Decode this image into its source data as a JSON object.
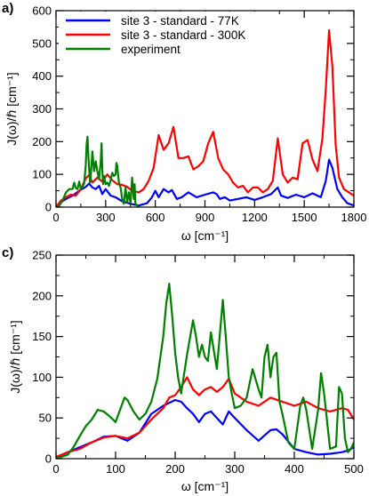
{
  "chart_data": [
    {
      "type": "line",
      "panel_label": "a)",
      "xlabel": "ω  [cm⁻¹]",
      "ylabel": "J(ω)/ℏ  [cm⁻¹]",
      "xlim": [
        0,
        1800
      ],
      "ylim": [
        0,
        600
      ],
      "xticks": [
        0,
        300,
        600,
        900,
        1200,
        1500,
        1800
      ],
      "yticks": [
        0,
        100,
        200,
        300,
        400,
        500,
        600
      ],
      "legend_position": "top-left",
      "series": [
        {
          "name": "site 3 - standard - 77K",
          "color": "#0000ff",
          "x": [
            0,
            30,
            60,
            100,
            140,
            180,
            200,
            220,
            240,
            260,
            280,
            300,
            330,
            360,
            400,
            450,
            500,
            550,
            580,
            600,
            620,
            650,
            680,
            700,
            730,
            760,
            800,
            850,
            900,
            950,
            970,
            990,
            1020,
            1050,
            1100,
            1150,
            1200,
            1250,
            1300,
            1340,
            1360,
            1400,
            1450,
            1500,
            1550,
            1600,
            1630,
            1650,
            1670,
            1700,
            1730,
            1760,
            1800
          ],
          "y": [
            0,
            15,
            25,
            35,
            50,
            62,
            72,
            60,
            55,
            65,
            40,
            55,
            35,
            30,
            18,
            10,
            5,
            12,
            30,
            50,
            30,
            55,
            45,
            52,
            25,
            30,
            45,
            30,
            38,
            45,
            40,
            25,
            30,
            20,
            25,
            30,
            22,
            30,
            40,
            60,
            35,
            28,
            38,
            30,
            42,
            30,
            80,
            145,
            120,
            55,
            30,
            12,
            5
          ]
        },
        {
          "name": "site 3 - standard - 300K",
          "color": "#ff0000",
          "x": [
            0,
            30,
            60,
            90,
            120,
            150,
            180,
            200,
            220,
            250,
            280,
            310,
            340,
            370,
            400,
            430,
            460,
            500,
            530,
            560,
            590,
            620,
            650,
            680,
            710,
            740,
            770,
            800,
            830,
            860,
            890,
            920,
            950,
            980,
            1010,
            1040,
            1070,
            1100,
            1130,
            1160,
            1190,
            1220,
            1250,
            1280,
            1310,
            1340,
            1370,
            1400,
            1430,
            1460,
            1490,
            1520,
            1550,
            1580,
            1610,
            1630,
            1650,
            1670,
            1690,
            1710,
            1740,
            1770,
            1800
          ],
          "y": [
            0,
            20,
            30,
            38,
            35,
            55,
            88,
            98,
            75,
            90,
            78,
            100,
            82,
            70,
            68,
            62,
            50,
            45,
            55,
            80,
            120,
            220,
            175,
            195,
            245,
            150,
            150,
            155,
            115,
            125,
            140,
            195,
            230,
            150,
            115,
            100,
            75,
            60,
            65,
            45,
            60,
            60,
            45,
            55,
            80,
            210,
            100,
            75,
            90,
            85,
            195,
            205,
            145,
            110,
            210,
            360,
            540,
            430,
            190,
            90,
            55,
            45,
            35
          ]
        },
        {
          "name": "experiment",
          "color": "#008000",
          "x": [
            0,
            20,
            40,
            60,
            80,
            100,
            110,
            120,
            130,
            140,
            150,
            160,
            170,
            180,
            185,
            190,
            195,
            200,
            205,
            210,
            220,
            230,
            240,
            250,
            260,
            270,
            275,
            280,
            285,
            290,
            300,
            310,
            320,
            330,
            340,
            350,
            360,
            365,
            370,
            380,
            390,
            400,
            410,
            420,
            430,
            440,
            450,
            460,
            470,
            475,
            480,
            490,
            500
          ],
          "y": [
            0,
            5,
            20,
            45,
            55,
            55,
            75,
            58,
            55,
            78,
            55,
            62,
            72,
            130,
            190,
            215,
            160,
            120,
            75,
            95,
            170,
            110,
            140,
            110,
            85,
            140,
            195,
            110,
            70,
            95,
            70,
            75,
            65,
            82,
            105,
            95,
            100,
            135,
            125,
            75,
            60,
            25,
            10,
            60,
            15,
            45,
            10,
            90,
            25,
            70,
            10,
            5,
            0
          ]
        }
      ]
    },
    {
      "type": "line",
      "panel_label": "c)",
      "xlabel": "ω  [cm⁻¹]",
      "ylabel": "J(ω)/ℏ  [cm⁻¹]",
      "xlim": [
        0,
        500
      ],
      "ylim": [
        0,
        250
      ],
      "xticks": [
        0,
        100,
        200,
        300,
        400,
        500
      ],
      "yticks": [
        0,
        50,
        100,
        150,
        200,
        250
      ],
      "series": [
        {
          "name": "",
          "color": "#0000ff",
          "x": [
            0,
            20,
            40,
            60,
            80,
            100,
            120,
            140,
            160,
            180,
            200,
            210,
            220,
            230,
            240,
            250,
            260,
            270,
            280,
            290,
            300,
            320,
            340,
            360,
            370,
            380,
            400,
            420,
            440,
            460,
            480,
            490,
            500
          ],
          "y": [
            2,
            8,
            14,
            20,
            27,
            28,
            22,
            32,
            55,
            65,
            72,
            70,
            62,
            55,
            45,
            55,
            58,
            50,
            42,
            58,
            50,
            35,
            22,
            35,
            36,
            30,
            12,
            8,
            5,
            6,
            8,
            10,
            14
          ]
        },
        {
          "name": "",
          "color": "#ff0000",
          "x": [
            0,
            20,
            40,
            60,
            80,
            100,
            120,
            140,
            160,
            180,
            190,
            200,
            210,
            220,
            230,
            240,
            250,
            260,
            270,
            280,
            290,
            300,
            320,
            340,
            360,
            380,
            400,
            420,
            440,
            460,
            480,
            490,
            500
          ],
          "y": [
            2,
            8,
            12,
            20,
            26,
            28,
            25,
            32,
            48,
            62,
            75,
            78,
            88,
            100,
            85,
            78,
            85,
            88,
            82,
            88,
            98,
            80,
            70,
            65,
            75,
            70,
            65,
            70,
            62,
            58,
            62,
            60,
            48
          ]
        },
        {
          "name": "",
          "color": "#008000",
          "x": [
            0,
            20,
            30,
            40,
            50,
            60,
            70,
            80,
            90,
            100,
            110,
            115,
            120,
            130,
            140,
            150,
            160,
            170,
            180,
            185,
            190,
            195,
            200,
            205,
            210,
            220,
            230,
            235,
            240,
            245,
            250,
            255,
            260,
            270,
            280,
            285,
            290,
            295,
            300,
            310,
            320,
            330,
            340,
            345,
            350,
            355,
            360,
            365,
            370,
            375,
            380,
            390,
            400,
            410,
            415,
            420,
            430,
            440,
            445,
            450,
            460,
            470,
            475,
            480,
            485,
            490,
            495,
            500
          ],
          "y": [
            0,
            5,
            15,
            28,
            40,
            48,
            60,
            58,
            52,
            45,
            65,
            75,
            72,
            58,
            48,
            55,
            70,
            98,
            150,
            190,
            215,
            175,
            130,
            100,
            80,
            128,
            170,
            150,
            125,
            140,
            125,
            120,
            155,
            110,
            195,
            150,
            100,
            80,
            62,
            65,
            75,
            110,
            85,
            75,
            125,
            140,
            100,
            125,
            130,
            70,
            55,
            20,
            12,
            65,
            75,
            60,
            12,
            60,
            105,
            80,
            12,
            15,
            88,
            80,
            25,
            8,
            12,
            20
          ]
        }
      ]
    }
  ]
}
